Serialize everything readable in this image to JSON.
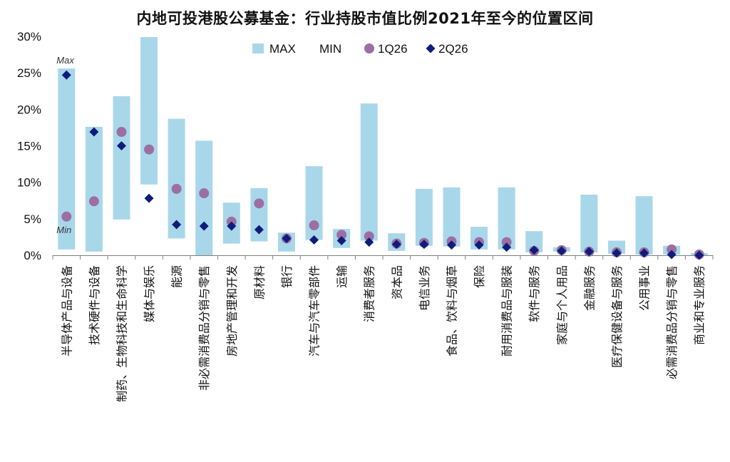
{
  "chart_data": {
    "type": "range",
    "title": "内地可投港股公募基金：行业持股市值比例2021年至今的位置区间",
    "ylim": [
      0,
      30
    ],
    "yticks": [
      "0%",
      "5%",
      "10%",
      "15%",
      "20%",
      "25%",
      "30%"
    ],
    "legend": {
      "position": "top",
      "entries": [
        {
          "label": "MAX",
          "marker": "bar"
        },
        {
          "label": "MIN",
          "marker": "none"
        },
        {
          "label": "1Q26",
          "marker": "circle"
        },
        {
          "label": "2Q26",
          "marker": "diamond"
        }
      ]
    },
    "annotations": {
      "max_label": "Max",
      "min_label": "Min"
    },
    "categories": [
      "半导体产品与设备",
      "技术硬件与设备",
      "制药、生物科技和生命科学",
      "媒体与娱乐",
      "能源",
      "非必需消费品分销与零售",
      "房地产管理和开发",
      "原材料",
      "银行",
      "汽车与汽车零部件",
      "运输",
      "消费者服务",
      "资本品",
      "电信业务",
      "食品、饮料与烟草",
      "保险",
      "耐用消费品与服装",
      "软件与服务",
      "家庭与个人用品",
      "金融服务",
      "医疗保健设备与服务",
      "公用事业",
      "必需消费品分销与零售",
      "商业和专业服务"
    ],
    "series": [
      {
        "name": "MAX",
        "values": [
          25.6,
          17.6,
          21.8,
          29.9,
          18.7,
          15.7,
          7.2,
          9.2,
          3.1,
          12.2,
          3.6,
          20.8,
          3.0,
          9.1,
          9.3,
          3.9,
          9.3,
          3.3,
          1.1,
          8.3,
          2.0,
          8.1,
          1.3,
          0.3
        ]
      },
      {
        "name": "MIN",
        "values": [
          0.8,
          0.5,
          4.9,
          9.7,
          2.3,
          0.0,
          1.6,
          1.9,
          0.5,
          2.1,
          1.0,
          2.0,
          0.6,
          1.3,
          1.2,
          0.8,
          0.8,
          0.4,
          0.5,
          0.4,
          0.2,
          0.1,
          0.1,
          0.0
        ]
      },
      {
        "name": "1Q26",
        "values": [
          5.3,
          7.4,
          16.9,
          14.5,
          9.1,
          8.5,
          4.6,
          7.1,
          2.3,
          4.1,
          2.8,
          2.6,
          1.6,
          1.7,
          1.9,
          1.8,
          1.8,
          0.6,
          0.7,
          0.5,
          0.4,
          0.4,
          0.8,
          0.1
        ]
      },
      {
        "name": "2Q26",
        "values": [
          24.7,
          16.9,
          15.0,
          7.8,
          4.2,
          4.0,
          4.0,
          3.5,
          2.3,
          2.1,
          2.0,
          1.8,
          1.5,
          1.5,
          1.4,
          1.4,
          1.1,
          0.7,
          0.6,
          0.5,
          0.3,
          0.3,
          0.1,
          0.0
        ]
      }
    ],
    "colors": {
      "bar": "#a9d7ea",
      "circle": "#9b6fa4",
      "diamond": "#0f1d7a",
      "axis": "#7f7f7f"
    }
  }
}
